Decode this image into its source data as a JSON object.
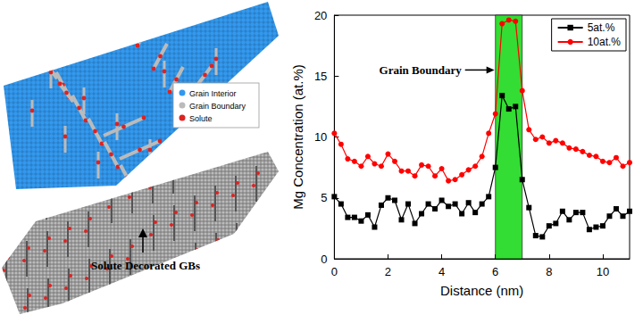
{
  "chart_data": {
    "type": "line",
    "xlabel": "Distance (nm)",
    "ylabel": "Mg Concentration (at.%)",
    "x": [
      0,
      0.25,
      0.5,
      0.75,
      1,
      1.25,
      1.5,
      1.75,
      2,
      2.25,
      2.5,
      2.75,
      3,
      3.25,
      3.5,
      3.75,
      4,
      4.25,
      4.5,
      4.75,
      5,
      5.25,
      5.5,
      5.75,
      6,
      6.25,
      6.5,
      6.75,
      7,
      7.25,
      7.5,
      7.75,
      8,
      8.25,
      8.5,
      8.75,
      9,
      9.25,
      9.5,
      9.75,
      10,
      10.25,
      10.5,
      10.75,
      11
    ],
    "series": [
      {
        "name": "5at.%",
        "color": "#000000",
        "marker": "square",
        "values": [
          5.1,
          4.5,
          3.4,
          3.4,
          3.1,
          3.6,
          2.6,
          4.4,
          5.0,
          4.8,
          3.2,
          4.5,
          2.9,
          3.7,
          4.5,
          4.1,
          4.8,
          4.3,
          4.5,
          3.7,
          4.6,
          3.8,
          4.5,
          5.1,
          7.5,
          13.4,
          12.3,
          12.5,
          6.5,
          4.2,
          1.9,
          1.8,
          2.7,
          2.9,
          3.9,
          3.2,
          3.8,
          3.8,
          2.4,
          2.6,
          2.7,
          3.5,
          4.1,
          3.5,
          3.9
        ]
      },
      {
        "name": "10at.%",
        "color": "#ff0000",
        "marker": "circle",
        "values": [
          10.3,
          9.4,
          8.2,
          8.0,
          7.6,
          8.4,
          7.8,
          7.6,
          8.6,
          8.0,
          7.2,
          7.2,
          6.8,
          7.7,
          7.6,
          6.8,
          7.4,
          6.4,
          6.5,
          6.9,
          7.3,
          7.6,
          8.4,
          10.3,
          11.9,
          19.3,
          19.6,
          19.5,
          13.8,
          10.6,
          9.8,
          10.0,
          9.5,
          9.7,
          9.5,
          9.1,
          9.0,
          8.8,
          8.5,
          8.4,
          8.0,
          7.9,
          8.3,
          7.6,
          7.9
        ]
      }
    ],
    "xlim": [
      0,
      11
    ],
    "xticks": [
      0,
      2,
      4,
      6,
      8,
      10
    ],
    "ylim": [
      0,
      20
    ],
    "yticks": [
      0,
      5,
      10,
      15,
      20
    ],
    "grid": false,
    "legend": "upper right",
    "shaded_region": {
      "x": [
        6,
        7
      ],
      "label": "Grain Boundary",
      "color": "#33dd33"
    }
  },
  "atomistic_views": {
    "legend": [
      {
        "label": "Grain Interior",
        "color": "#3399ee"
      },
      {
        "label": "Grain Boundary",
        "color": "#bbbbbb"
      },
      {
        "label": "Solute",
        "color": "#dd2222"
      }
    ],
    "annotation": "Solute Decorated GBs"
  }
}
